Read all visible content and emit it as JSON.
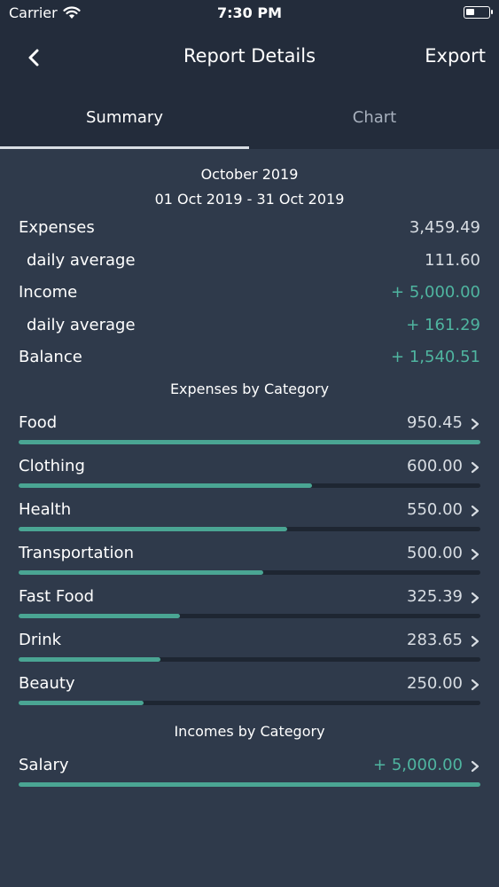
{
  "status": {
    "carrier": "Carrier",
    "time": "7:30 PM"
  },
  "nav": {
    "title": "Report Details",
    "export_label": "Export"
  },
  "tabs": [
    {
      "label": "Summary",
      "active": true
    },
    {
      "label": "Chart",
      "active": false
    }
  ],
  "period": {
    "month": "October 2019",
    "range": "01 Oct 2019 - 31 Oct 2019"
  },
  "summary": {
    "expenses_label": "Expenses",
    "expenses_value": "3,459.49",
    "expenses_avg_label": "daily average",
    "expenses_avg_value": "111.60",
    "income_label": "Income",
    "income_value": "+ 5,000.00",
    "income_avg_label": "daily average",
    "income_avg_value": "+ 161.29",
    "balance_label": "Balance",
    "balance_value": "+ 1,540.51"
  },
  "expenses_heading": "Expenses by Category",
  "expense_categories": [
    {
      "name": "Food",
      "amount": "950.45",
      "fraction": 1.0
    },
    {
      "name": "Clothing",
      "amount": "600.00",
      "fraction": 0.635
    },
    {
      "name": "Health",
      "amount": "550.00",
      "fraction": 0.582
    },
    {
      "name": "Transportation",
      "amount": "500.00",
      "fraction": 0.529
    },
    {
      "name": "Fast Food",
      "amount": "325.39",
      "fraction": 0.349
    },
    {
      "name": "Drink",
      "amount": "283.65",
      "fraction": 0.307
    },
    {
      "name": "Beauty",
      "amount": "250.00",
      "fraction": 0.271
    }
  ],
  "incomes_heading": "Incomes by Category",
  "income_categories": [
    {
      "name": "Salary",
      "amount": "+ 5,000.00",
      "fraction": 1.0
    }
  ],
  "colors": {
    "accent": "#4aa593",
    "positive_text": "#4fb5a0",
    "background": "#2f3a4b",
    "header": "#232c3b"
  }
}
